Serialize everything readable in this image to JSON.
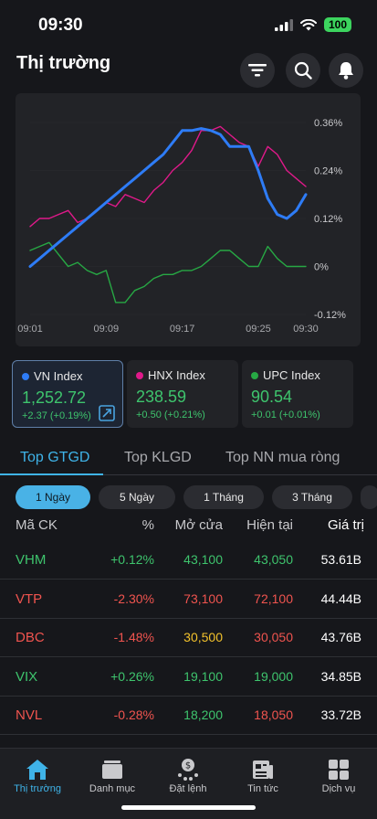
{
  "status": {
    "time": "09:30",
    "battery": "100"
  },
  "header": {
    "title": "Thị trường"
  },
  "chart": {
    "y_ticks": [
      "0.36%",
      "0.24%",
      "0.12%",
      "0%",
      "-0.12%"
    ],
    "x_ticks": [
      "09:01",
      "09:09",
      "09:17",
      "09:25",
      "09:30"
    ]
  },
  "chart_data": {
    "type": "line",
    "x": [
      "09:01",
      "09:02",
      "09:03",
      "09:04",
      "09:05",
      "09:06",
      "09:07",
      "09:08",
      "09:09",
      "09:10",
      "09:11",
      "09:12",
      "09:13",
      "09:14",
      "09:15",
      "09:16",
      "09:17",
      "09:18",
      "09:19",
      "09:20",
      "09:21",
      "09:22",
      "09:23",
      "09:24",
      "09:25",
      "09:26",
      "09:27",
      "09:28",
      "09:29",
      "09:30"
    ],
    "series": [
      {
        "name": "VN Index",
        "color": "#2e7cf6",
        "values": [
          0.0,
          0.02,
          0.04,
          0.06,
          0.08,
          0.1,
          0.12,
          0.14,
          0.16,
          0.18,
          0.2,
          0.22,
          0.24,
          0.26,
          0.28,
          0.31,
          0.34,
          0.34,
          0.345,
          0.34,
          0.33,
          0.3,
          0.3,
          0.3,
          0.24,
          0.17,
          0.13,
          0.12,
          0.14,
          0.18
        ]
      },
      {
        "name": "HNX Index",
        "color": "#e0198a",
        "values": [
          0.1,
          0.12,
          0.12,
          0.13,
          0.14,
          0.11,
          0.12,
          0.14,
          0.16,
          0.15,
          0.18,
          0.17,
          0.16,
          0.19,
          0.21,
          0.24,
          0.26,
          0.29,
          0.34,
          0.34,
          0.35,
          0.33,
          0.31,
          0.3,
          0.25,
          0.3,
          0.28,
          0.24,
          0.22,
          0.2
        ]
      },
      {
        "name": "UPC Index",
        "color": "#27a844",
        "values": [
          0.04,
          0.05,
          0.06,
          0.03,
          0.0,
          0.01,
          -0.01,
          -0.02,
          -0.01,
          -0.09,
          -0.09,
          -0.06,
          -0.05,
          -0.03,
          -0.02,
          -0.02,
          -0.01,
          -0.01,
          0.0,
          0.02,
          0.04,
          0.04,
          0.02,
          0.0,
          0.0,
          0.05,
          0.02,
          0.0,
          0.0,
          0.0
        ]
      }
    ],
    "ylim": [
      -0.12,
      0.36
    ],
    "y_ticks": [
      0.36,
      0.24,
      0.12,
      0,
      -0.12
    ]
  },
  "indices": [
    {
      "name": "VN Index",
      "color": "#2e7cf6",
      "value": "1,252.72",
      "change": "+2.37 (+0.19%)"
    },
    {
      "name": "HNX Index",
      "color": "#e0198a",
      "value": "238.59",
      "change": "+0.50 (+0.21%)"
    },
    {
      "name": "UPC Index",
      "color": "#27a844",
      "value": "90.54",
      "change": "+0.01 (+0.01%)"
    }
  ],
  "tabs": [
    "Top GTGD",
    "Top KLGD",
    "Top NN mua ròng"
  ],
  "periods": [
    "1 Ngày",
    "5 Ngày",
    "1 Tháng",
    "3 Tháng"
  ],
  "table": {
    "headers": [
      "Mã CK",
      "%",
      "Mở cửa",
      "Hiện tại",
      "Giá trị"
    ],
    "rows": [
      {
        "symbol": "VHM",
        "pct": "+0.12%",
        "open": "43,100",
        "current": "43,050",
        "value": "53.61B",
        "sym_class": "up",
        "pct_class": "up",
        "open_class": "up",
        "cur_class": "up"
      },
      {
        "symbol": "VTP",
        "pct": "-2.30%",
        "open": "73,100",
        "current": "72,100",
        "value": "44.44B",
        "sym_class": "down",
        "pct_class": "down",
        "open_class": "down",
        "cur_class": "down"
      },
      {
        "symbol": "DBC",
        "pct": "-1.48%",
        "open": "30,500",
        "current": "30,050",
        "value": "43.76B",
        "sym_class": "down",
        "pct_class": "down",
        "open_class": "ref",
        "cur_class": "down"
      },
      {
        "symbol": "VIX",
        "pct": "+0.26%",
        "open": "19,100",
        "current": "19,000",
        "value": "34.85B",
        "sym_class": "up",
        "pct_class": "up",
        "open_class": "up",
        "cur_class": "up"
      },
      {
        "symbol": "NVL",
        "pct": "-0.28%",
        "open": "18,200",
        "current": "18,050",
        "value": "33.72B",
        "sym_class": "down",
        "pct_class": "down",
        "open_class": "up",
        "cur_class": "down"
      }
    ]
  },
  "nav": [
    "Thị trường",
    "Danh mục",
    "Đặt lệnh",
    "Tin tức",
    "Dịch vụ"
  ],
  "colors": {
    "up": "#3ec46d",
    "down": "#f0544f",
    "ref": "#f3c22c",
    "accent": "#3fb3e8"
  }
}
